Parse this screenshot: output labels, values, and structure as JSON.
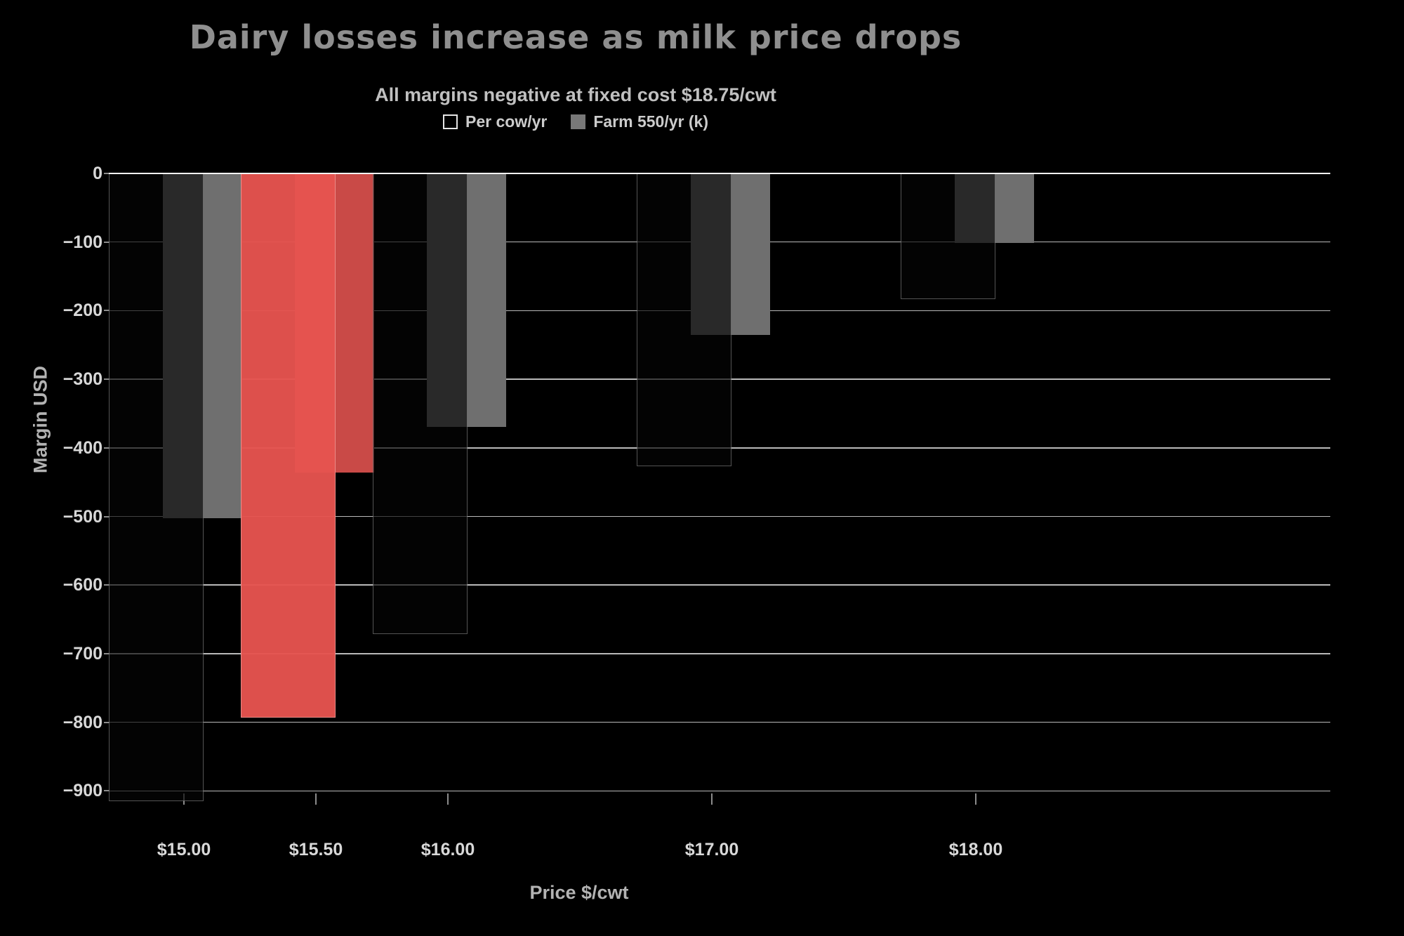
{
  "chart_data": {
    "type": "bar",
    "title": "Dairy losses increase as milk price drops",
    "subtitle": "All margins negative at fixed cost $18.75/cwt",
    "xlabel": "Price $/cwt",
    "ylabel": "Margin USD",
    "x": [
      15.0,
      15.5,
      16.0,
      17.0,
      18.0
    ],
    "x_tick_labels": [
      "$15.00",
      "$15.50",
      "$16.00",
      "$17.00",
      "$18.00"
    ],
    "y_ticks": [
      0,
      -100,
      -200,
      -300,
      -400,
      -500,
      -600,
      -700,
      -800,
      -900
    ],
    "ylim": [
      -940,
      0
    ],
    "xlim": [
      14.7,
      19.35
    ],
    "grid": true,
    "legend_position": "top",
    "series": [
      {
        "name": "Per cow/yr",
        "values": [
          -915,
          -793,
          -671,
          -427,
          -183
        ]
      },
      {
        "name": "Farm 550/yr (k)",
        "values": [
          -503,
          -436,
          -369,
          -235,
          -101
        ]
      }
    ],
    "highlight_x": 15.5,
    "colors": {
      "background": "#000000",
      "title": "#8f8f8f",
      "subtitle": "#c0c0c0",
      "legend_text": "#cccccc",
      "axis_label": "#b3b3b3",
      "tick_label": "#d8d8d8",
      "tick_mark": "#8b8b8b",
      "grid": "#b9b9b9",
      "grid_zero": "#f5f5f5",
      "per_cow_fill": "rgba(5,5,5,0.66)",
      "per_cow_outline": "rgba(255,255,255,0.32)",
      "farm_fill": "#6f6f6f",
      "per_cow_highlight": "rgba(230,83,79,0.96)",
      "farm_highlight": "#c94a47",
      "legend_swatch_outline": "#e5e5e5",
      "legend_swatch_farm": "#787878"
    }
  }
}
